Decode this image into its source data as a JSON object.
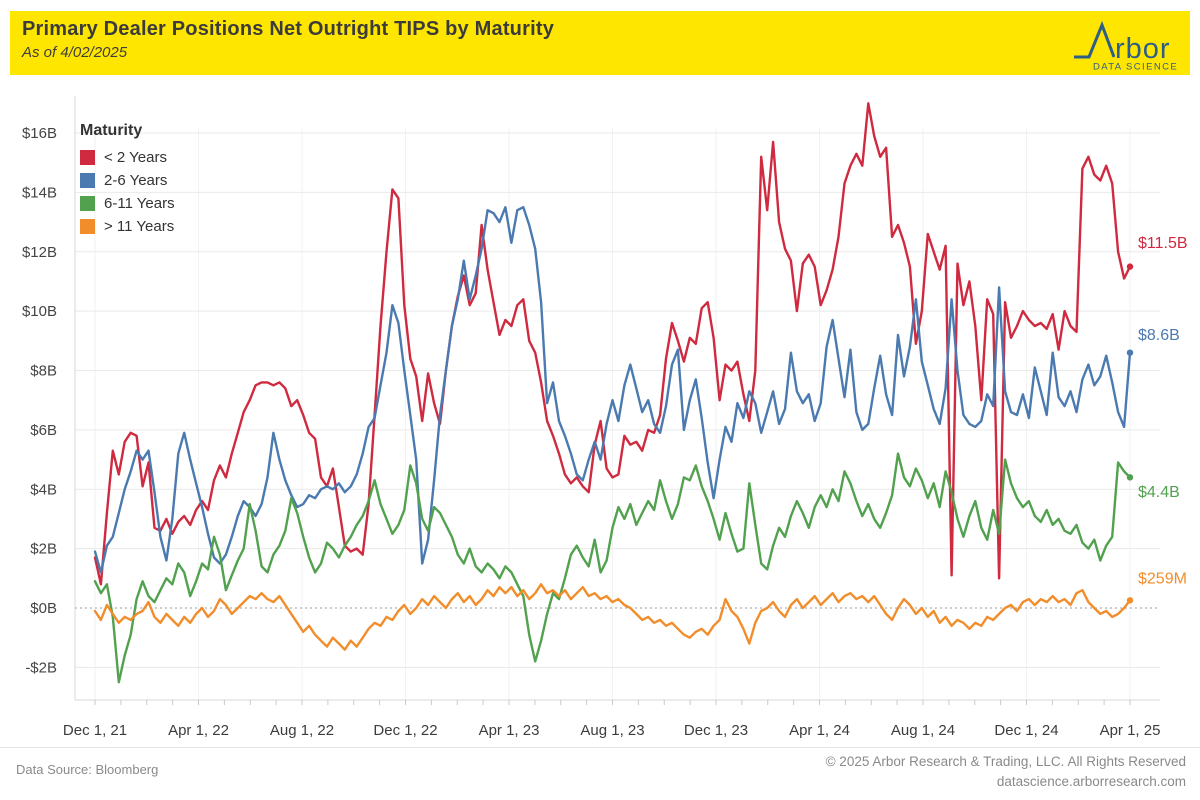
{
  "header": {
    "title": "Primary Dealer Positions Net Outright TIPS by Maturity",
    "subtitle": "As of 4/02/2025",
    "logo": {
      "wordmark_tail": "rbor",
      "tagline": "DATA SCIENCE",
      "color": "#2e5e86",
      "background": "#ffe600"
    }
  },
  "footer": {
    "source": "Data Source: Bloomberg",
    "copyright": "© 2025 Arbor Research & Trading, LLC. All Rights Reserved",
    "website": "datascience.arborresearch.com"
  },
  "chart_data": {
    "type": "line",
    "title": "Primary Dealer Positions Net Outright TIPS by Maturity",
    "as_of": "4/02/2025",
    "legend_title": "Maturity",
    "legend_position": "top-left inside",
    "grid": true,
    "unit": "USD billions",
    "ylim": [
      -3.2,
      17.4
    ],
    "y_ticks": [
      16,
      14,
      12,
      10,
      8,
      6,
      4,
      2,
      0,
      -2
    ],
    "y_tick_labels": [
      "$16B",
      "$14B",
      "$12B",
      "$10B",
      "$8B",
      "$6B",
      "$4B",
      "$2B",
      "$0B",
      "-$2B"
    ],
    "x_tick_labels": [
      "Dec 1, 21",
      "Apr 1, 22",
      "Aug 1, 22",
      "Dec 1, 22",
      "Apr 1, 23",
      "Aug 1, 23",
      "Dec 1, 23",
      "Apr 1, 24",
      "Aug 1, 24",
      "Dec 1, 24",
      "Apr 1, 25"
    ],
    "x_tick_month_index": [
      0,
      4,
      8,
      12,
      16,
      20,
      24,
      28,
      32,
      36,
      40
    ],
    "months_total": 40,
    "series": [
      {
        "name": "< 2 Years",
        "color": "#cf2a3f",
        "end_label": "$11.5B",
        "end_label_value": 12.3,
        "values": [
          1.7,
          0.8,
          3.2,
          5.3,
          4.5,
          5.6,
          5.9,
          5.8,
          4.1,
          4.9,
          2.7,
          2.6,
          3.0,
          2.5,
          2.9,
          3.1,
          2.8,
          3.3,
          3.6,
          3.3,
          4.3,
          4.8,
          4.4,
          5.2,
          5.9,
          6.6,
          7.0,
          7.5,
          7.6,
          7.6,
          7.5,
          7.6,
          7.4,
          6.8,
          7.0,
          6.5,
          5.9,
          5.7,
          4.4,
          4.1,
          4.7,
          3.4,
          2.1,
          1.9,
          2.0,
          1.8,
          3.5,
          6.5,
          9.5,
          12.0,
          14.1,
          13.8,
          10.2,
          8.4,
          7.8,
          6.3,
          7.9,
          6.9,
          6.2,
          8.0,
          9.5,
          10.5,
          11.2,
          10.2,
          10.6,
          12.9,
          11.4,
          10.3,
          9.2,
          9.7,
          9.5,
          10.2,
          10.4,
          9.0,
          8.6,
          7.6,
          6.3,
          5.8,
          5.2,
          4.5,
          4.2,
          4.4,
          4.1,
          3.9,
          5.5,
          6.3,
          4.7,
          4.4,
          4.5,
          5.8,
          5.5,
          5.6,
          5.3,
          6.0,
          5.9,
          6.5,
          8.4,
          9.6,
          9.0,
          8.3,
          9.1,
          8.9,
          10.1,
          10.3,
          9.1,
          7.0,
          8.2,
          8.0,
          8.3,
          7.2,
          6.3,
          8.0,
          15.2,
          13.4,
          15.7,
          13.0,
          12.1,
          11.7,
          10.0,
          11.6,
          11.9,
          11.5,
          10.2,
          10.7,
          11.4,
          12.5,
          14.3,
          14.9,
          15.3,
          14.9,
          17.0,
          15.9,
          15.2,
          15.5,
          12.5,
          12.9,
          12.3,
          11.5,
          8.9,
          10.0,
          12.6,
          12.0,
          11.4,
          12.2,
          1.1,
          11.6,
          10.2,
          11.0,
          9.5,
          7.0,
          10.4,
          9.9,
          1.0,
          10.3,
          9.1,
          9.5,
          10.0,
          9.7,
          9.5,
          9.6,
          9.4,
          9.9,
          8.7,
          10.0,
          9.5,
          9.3,
          14.8,
          15.2,
          14.6,
          14.4,
          14.9,
          14.3,
          12.0,
          11.1,
          11.5
        ]
      },
      {
        "name": "2-6 Years",
        "color": "#4a7ab0",
        "end_label": "$8.6B",
        "end_label_value": 9.2,
        "values": [
          1.9,
          1.2,
          2.1,
          2.4,
          3.2,
          4.0,
          4.6,
          5.3,
          5.0,
          5.3,
          3.9,
          2.4,
          1.6,
          3.0,
          5.2,
          5.9,
          5.0,
          4.2,
          3.4,
          2.5,
          1.7,
          1.5,
          1.8,
          2.4,
          3.1,
          3.6,
          3.4,
          3.1,
          3.5,
          4.4,
          5.9,
          5.0,
          4.3,
          3.8,
          3.4,
          3.5,
          3.8,
          3.7,
          4.0,
          4.1,
          4.0,
          4.2,
          3.9,
          4.1,
          4.5,
          5.2,
          6.1,
          6.4,
          7.5,
          8.6,
          10.2,
          9.6,
          8.0,
          6.5,
          5.0,
          1.5,
          2.3,
          4.3,
          6.5,
          8.0,
          9.5,
          10.4,
          11.7,
          10.4,
          11.2,
          12.1,
          13.4,
          13.3,
          13.0,
          13.5,
          12.3,
          13.4,
          13.5,
          12.9,
          12.1,
          10.3,
          6.9,
          7.6,
          6.3,
          5.8,
          5.2,
          4.5,
          4.3,
          5.0,
          5.6,
          5.0,
          6.2,
          7.0,
          6.3,
          7.5,
          8.2,
          7.4,
          6.6,
          7.0,
          6.2,
          5.9,
          6.8,
          8.2,
          8.7,
          6.0,
          7.0,
          7.7,
          6.4,
          4.9,
          3.7,
          5.0,
          6.1,
          5.6,
          6.9,
          6.4,
          7.3,
          6.9,
          5.9,
          6.6,
          7.3,
          6.2,
          6.7,
          8.6,
          7.3,
          6.9,
          7.2,
          6.3,
          6.9,
          8.8,
          9.7,
          8.4,
          7.1,
          8.7,
          6.6,
          6.0,
          6.2,
          7.4,
          8.5,
          7.2,
          6.5,
          9.2,
          7.8,
          8.8,
          10.4,
          8.3,
          7.5,
          6.7,
          6.2,
          7.4,
          10.4,
          8.0,
          6.5,
          6.2,
          6.1,
          6.3,
          7.2,
          6.8,
          10.8,
          7.3,
          6.6,
          6.5,
          7.2,
          6.4,
          8.1,
          7.3,
          6.5,
          8.6,
          7.1,
          6.8,
          7.3,
          6.6,
          7.7,
          8.2,
          7.5,
          7.8,
          8.5,
          7.6,
          6.6,
          6.1,
          8.6
        ]
      },
      {
        "name": "6-11 Years",
        "color": "#52a14e",
        "end_label": "$4.4B",
        "end_label_value": 3.9,
        "values": [
          0.9,
          0.5,
          0.8,
          -0.3,
          -2.5,
          -1.6,
          -0.9,
          0.3,
          0.9,
          0.4,
          0.2,
          0.6,
          1.0,
          0.8,
          1.5,
          1.2,
          0.4,
          0.9,
          1.5,
          1.3,
          2.4,
          1.8,
          0.6,
          1.1,
          1.6,
          2.0,
          3.5,
          2.6,
          1.4,
          1.2,
          1.8,
          2.1,
          2.6,
          3.7,
          3.2,
          2.4,
          1.7,
          1.2,
          1.5,
          2.2,
          2.0,
          1.7,
          2.1,
          2.4,
          2.8,
          3.1,
          3.6,
          4.3,
          3.5,
          3.0,
          2.5,
          2.8,
          3.3,
          4.8,
          4.2,
          3.0,
          2.6,
          3.4,
          3.2,
          2.8,
          2.4,
          1.8,
          1.5,
          2.0,
          1.4,
          1.2,
          1.5,
          1.3,
          1.0,
          1.4,
          1.2,
          0.8,
          0.4,
          -0.9,
          -1.8,
          -1.1,
          -0.2,
          0.5,
          0.3,
          1.0,
          1.8,
          2.1,
          1.7,
          1.4,
          2.3,
          1.2,
          1.6,
          2.7,
          3.4,
          3.0,
          3.5,
          2.8,
          3.2,
          3.6,
          3.3,
          4.3,
          3.6,
          3.0,
          3.5,
          4.4,
          4.3,
          4.8,
          4.1,
          3.6,
          3.0,
          2.3,
          3.2,
          2.5,
          1.9,
          2.0,
          4.2,
          2.8,
          1.5,
          1.3,
          2.1,
          2.7,
          2.4,
          3.1,
          3.6,
          3.2,
          2.7,
          3.4,
          3.8,
          3.4,
          4.0,
          3.6,
          4.6,
          4.2,
          3.6,
          3.1,
          3.5,
          3.0,
          2.7,
          3.2,
          3.8,
          5.2,
          4.4,
          4.1,
          4.7,
          4.3,
          3.7,
          4.2,
          3.4,
          4.6,
          3.9,
          3.0,
          2.4,
          3.1,
          3.6,
          2.7,
          2.3,
          3.3,
          2.5,
          5.0,
          4.2,
          3.7,
          3.4,
          3.6,
          3.1,
          2.9,
          3.3,
          2.8,
          3.0,
          2.6,
          2.5,
          2.8,
          2.2,
          2.0,
          2.3,
          1.6,
          2.1,
          2.4,
          4.9,
          4.6,
          4.4
        ]
      },
      {
        "name": "> 11 Years",
        "color": "#f28d2c",
        "end_label": "$259M",
        "end_label_value": 1.0,
        "values": [
          -0.1,
          -0.4,
          0.1,
          -0.2,
          -0.5,
          -0.3,
          -0.4,
          -0.2,
          -0.1,
          0.2,
          -0.3,
          -0.5,
          -0.2,
          -0.4,
          -0.6,
          -0.3,
          -0.5,
          -0.2,
          0.0,
          -0.3,
          -0.1,
          0.3,
          0.1,
          -0.2,
          0.0,
          0.2,
          0.4,
          0.3,
          0.5,
          0.3,
          0.2,
          0.4,
          0.1,
          -0.2,
          -0.5,
          -0.8,
          -0.6,
          -0.9,
          -1.1,
          -1.3,
          -1.0,
          -1.2,
          -1.4,
          -1.1,
          -1.3,
          -1.0,
          -0.7,
          -0.5,
          -0.6,
          -0.3,
          -0.4,
          -0.1,
          0.1,
          -0.2,
          0.0,
          0.3,
          0.1,
          0.4,
          0.2,
          0.0,
          0.3,
          0.5,
          0.2,
          0.4,
          0.1,
          0.3,
          0.6,
          0.4,
          0.7,
          0.5,
          0.7,
          0.4,
          0.6,
          0.3,
          0.5,
          0.8,
          0.5,
          0.6,
          0.4,
          0.6,
          0.3,
          0.5,
          0.7,
          0.4,
          0.5,
          0.3,
          0.4,
          0.2,
          0.3,
          0.1,
          0.0,
          -0.2,
          -0.4,
          -0.3,
          -0.5,
          -0.4,
          -0.6,
          -0.5,
          -0.7,
          -0.9,
          -1.0,
          -0.8,
          -0.7,
          -0.9,
          -0.6,
          -0.4,
          0.3,
          -0.1,
          -0.3,
          -0.7,
          -1.2,
          -0.5,
          -0.1,
          0.0,
          0.2,
          -0.1,
          -0.3,
          0.1,
          0.3,
          0.0,
          0.2,
          0.4,
          0.1,
          0.3,
          0.5,
          0.2,
          0.4,
          0.5,
          0.3,
          0.4,
          0.2,
          0.4,
          0.1,
          -0.2,
          -0.4,
          0.0,
          0.3,
          0.1,
          -0.2,
          0.0,
          -0.3,
          -0.1,
          -0.5,
          -0.3,
          -0.6,
          -0.4,
          -0.5,
          -0.7,
          -0.5,
          -0.6,
          -0.3,
          -0.4,
          -0.2,
          0.0,
          0.1,
          -0.1,
          0.2,
          0.3,
          0.1,
          0.3,
          0.2,
          0.4,
          0.2,
          0.3,
          0.1,
          0.5,
          0.6,
          0.2,
          0.0,
          -0.2,
          -0.1,
          -0.3,
          -0.2,
          0.0,
          0.259
        ]
      }
    ]
  }
}
